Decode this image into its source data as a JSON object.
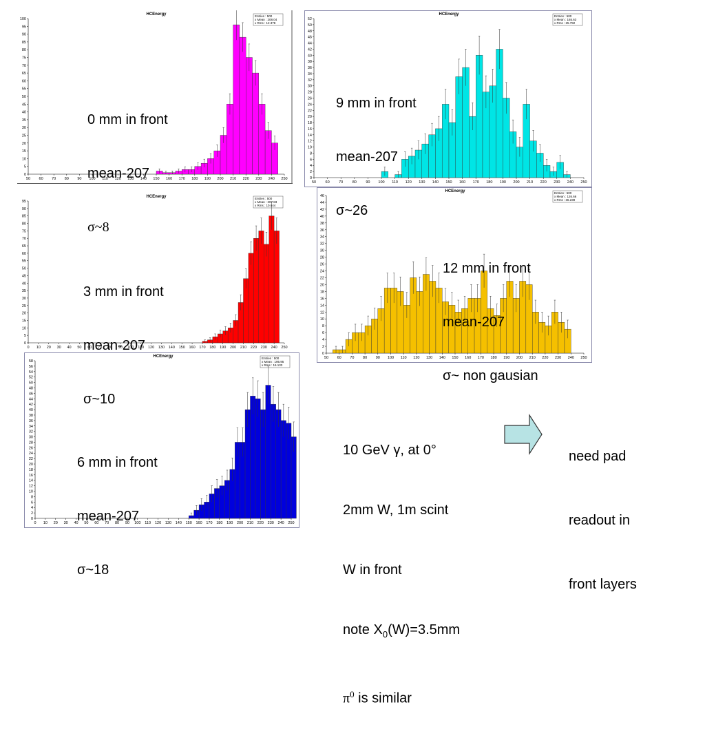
{
  "chart_data": [
    {
      "type": "bar",
      "title": "HCEnergy",
      "x": [
        150,
        155,
        160,
        165,
        170,
        175,
        180,
        185,
        190,
        195,
        200,
        205,
        210,
        215,
        220,
        225,
        230,
        235,
        240
      ],
      "values": [
        2,
        1,
        1,
        2,
        3,
        3,
        5,
        7,
        10,
        15,
        25,
        45,
        96,
        88,
        75,
        65,
        45,
        28,
        20
      ],
      "xlim": [
        50,
        250
      ],
      "ylim": [
        0,
        100
      ],
      "xticks": [
        "50",
        "60",
        "70",
        "80",
        "90",
        "100",
        "110",
        "120",
        "130",
        "140",
        "150",
        "160",
        "170",
        "180",
        "190",
        "200",
        "210",
        "220",
        "230",
        "240",
        "250"
      ],
      "yticks": [
        "0",
        "5",
        "10",
        "15",
        "20",
        "25",
        "30",
        "35",
        "40",
        "45",
        "50",
        "55",
        "60",
        "65",
        "70",
        "75",
        "80",
        "85",
        "90",
        "95",
        "100"
      ],
      "color": "#ff00ff",
      "stats": {
        "entries": "Entries :    500",
        "mean": "x Mean :  208.04",
        "rms": "x Rms :    12.378"
      }
    },
    {
      "type": "bar",
      "title": "HCEnergy",
      "x": [
        100,
        105,
        110,
        115,
        120,
        125,
        130,
        135,
        140,
        145,
        150,
        155,
        160,
        165,
        170,
        175,
        180,
        185,
        190,
        195,
        200,
        205,
        210,
        215,
        220,
        225,
        230,
        235,
        240
      ],
      "values": [
        2,
        0,
        1,
        6,
        7,
        9,
        11,
        14,
        16,
        24,
        18,
        33,
        36,
        20,
        40,
        28,
        30,
        42,
        26,
        15,
        10,
        24,
        12,
        8,
        4,
        2,
        5,
        1,
        0
      ],
      "xlim": [
        50,
        250
      ],
      "ylim": [
        0,
        52
      ],
      "xticks": [
        "50",
        "60",
        "70",
        "80",
        "90",
        "100",
        "110",
        "120",
        "130",
        "140",
        "150",
        "160",
        "170",
        "180",
        "190",
        "200",
        "210",
        "220",
        "230",
        "240",
        "250"
      ],
      "yticks": [
        "0",
        "2",
        "4",
        "6",
        "8",
        "10",
        "12",
        "14",
        "16",
        "18",
        "20",
        "22",
        "24",
        "26",
        "28",
        "30",
        "32",
        "34",
        "36",
        "38",
        "40",
        "42",
        "44",
        "46",
        "48",
        "50",
        "52"
      ],
      "color": "#00e5e5",
      "stats": {
        "entries": "Entries :    500",
        "mean": "x Mean :  165.63",
        "rms": "x Rms :    25.792"
      }
    },
    {
      "type": "bar",
      "title": "HCEnergy",
      "x": [
        170,
        175,
        180,
        185,
        190,
        195,
        200,
        205,
        210,
        215,
        220,
        225,
        230,
        235,
        240
      ],
      "values": [
        1,
        2,
        4,
        6,
        8,
        10,
        15,
        27,
        43,
        60,
        70,
        75,
        66,
        85,
        75
      ],
      "xlim": [
        0,
        250
      ],
      "ylim": [
        0,
        95
      ],
      "xticks": [
        "0",
        "10",
        "20",
        "30",
        "40",
        "50",
        "60",
        "70",
        "80",
        "90",
        "100",
        "110",
        "120",
        "130",
        "140",
        "150",
        "160",
        "170",
        "180",
        "190",
        "200",
        "210",
        "220",
        "230",
        "240",
        "250"
      ],
      "yticks": [
        "0",
        "5",
        "10",
        "15",
        "20",
        "25",
        "30",
        "35",
        "40",
        "45",
        "50",
        "55",
        "60",
        "65",
        "70",
        "75",
        "80",
        "85",
        "90",
        "95"
      ],
      "color": "#ff0000",
      "stats": {
        "entries": "Entries :    500",
        "mean": "x Mean :  207.83",
        "rms": "x Rms :    10.644"
      }
    },
    {
      "type": "bar",
      "title": "HCEnergy",
      "x": [
        55,
        60,
        65,
        70,
        75,
        80,
        85,
        90,
        95,
        100,
        105,
        110,
        115,
        120,
        125,
        130,
        135,
        140,
        145,
        150,
        155,
        160,
        165,
        170,
        175,
        180,
        185,
        190,
        195,
        200,
        205,
        210,
        215,
        220,
        225,
        230,
        235
      ],
      "values": [
        1,
        1,
        4,
        6,
        6,
        8,
        10,
        13,
        19,
        19,
        18,
        14,
        22,
        18,
        23,
        21,
        19,
        15,
        14,
        12,
        13,
        16,
        16,
        24,
        13,
        11,
        16,
        21,
        16,
        21,
        20,
        12,
        9,
        8,
        12,
        9,
        7
      ],
      "xlim": [
        50,
        250
      ],
      "ylim": [
        0,
        46
      ],
      "xticks": [
        "50",
        "60",
        "70",
        "80",
        "90",
        "100",
        "110",
        "120",
        "130",
        "140",
        "150",
        "160",
        "170",
        "180",
        "190",
        "200",
        "210",
        "220",
        "230",
        "240",
        "250"
      ],
      "yticks": [
        "0",
        "2",
        "4",
        "6",
        "8",
        "10",
        "12",
        "14",
        "16",
        "18",
        "20",
        "22",
        "24",
        "26",
        "28",
        "30",
        "32",
        "34",
        "36",
        "38",
        "40",
        "42",
        "44",
        "46"
      ],
      "color": "#f5c000",
      "stats": {
        "entries": "Entries :    500",
        "mean": "x Mean :  126.66",
        "rms": "x Rms :    36.239"
      }
    },
    {
      "type": "bar",
      "title": "HCEnergy",
      "x": [
        150,
        155,
        160,
        165,
        170,
        175,
        180,
        185,
        190,
        195,
        200,
        205,
        210,
        215,
        220,
        225,
        230,
        235,
        240,
        245,
        250
      ],
      "values": [
        1,
        3,
        5,
        6,
        9,
        11,
        12,
        14,
        18,
        28,
        28,
        40,
        45,
        44,
        40,
        49,
        42,
        40,
        36,
        35,
        30
      ],
      "xlim": [
        0,
        250
      ],
      "ylim": [
        0,
        58
      ],
      "xticks": [
        "0",
        "10",
        "20",
        "30",
        "40",
        "50",
        "60",
        "70",
        "80",
        "90",
        "100",
        "110",
        "120",
        "130",
        "140",
        "150",
        "160",
        "170",
        "180",
        "190",
        "200",
        "210",
        "220",
        "230",
        "240",
        "250"
      ],
      "yticks": [
        "0",
        "2",
        "4",
        "6",
        "8",
        "10",
        "12",
        "14",
        "16",
        "18",
        "20",
        "22",
        "24",
        "26",
        "28",
        "30",
        "32",
        "34",
        "36",
        "38",
        "40",
        "42",
        "44",
        "46",
        "48",
        "50",
        "52",
        "54",
        "56",
        "58"
      ],
      "color": "#0000dd",
      "stats": {
        "entries": "Entries :    500",
        "mean": "x Mean :  195.95",
        "rms": "x Rms :    16.133"
      }
    }
  ],
  "notes": {
    "p0": {
      "line1": "0 mm in front",
      "line2": "mean-207",
      "line3": "σ~8"
    },
    "p1": {
      "line1": "9 mm in front",
      "line2": "mean-207",
      "line3": "σ~26"
    },
    "p2": {
      "line1": "3 mm in front",
      "line2": "mean-207",
      "line3": "σ~10"
    },
    "p3": {
      "line1": "12 mm in front",
      "line2": "mean-207",
      "line3": "σ~ non gausian"
    },
    "p4": {
      "line1": "6 mm in front",
      "line2": "mean-207",
      "line3": "σ~18"
    }
  },
  "summary": {
    "line1": "10 GeV γ, at 0°",
    "line2": "2mm W, 1m scint",
    "line3": "W in front",
    "line4_pre": "note X",
    "line4_sub": "0",
    "line4_post": "(W)=3.5mm",
    "line5_sym": "π",
    "line5_sup": "0",
    "line5_post": " is similar"
  },
  "pad_note": {
    "line1": "need pad",
    "line2": "readout in",
    "line3": "front layers"
  },
  "colors": {
    "arrow_fill": "#b7e3e4",
    "arrow_stroke": "#333333",
    "frame": "#8888aa"
  }
}
